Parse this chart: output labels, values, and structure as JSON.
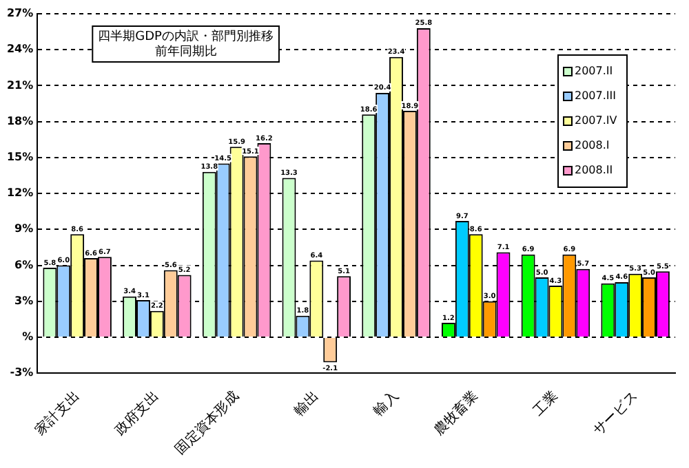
{
  "chart_data": {
    "type": "bar",
    "title": "四半期GDPの内訳・部門別推移",
    "subtitle": "前年同期比",
    "categories": [
      "家計支出",
      "政府支出",
      "固定資本形成",
      "輸出",
      "輸入",
      "農牧畜業",
      "工業",
      "サービス"
    ],
    "series": [
      {
        "name": "2007.II",
        "color": "#ccffcc",
        "colors": [
          "#ccffcc",
          "#ccffcc",
          "#ccffcc",
          "#ccffcc",
          "#ccffcc",
          "#00ff00",
          "#00ff00",
          "#00ff00"
        ],
        "values": [
          5.8,
          3.4,
          13.8,
          13.3,
          18.6,
          1.2,
          6.9,
          4.5
        ],
        "value_labels": [
          "5.8",
          "3.4",
          "13.8",
          "13.3",
          "18.6",
          "1.2",
          "6.9",
          "4.5"
        ]
      },
      {
        "name": "2007.III",
        "color": "#99ccff",
        "colors": [
          "#99ccff",
          "#99ccff",
          "#99ccff",
          "#99ccff",
          "#99ccff",
          "#00ccff",
          "#00ccff",
          "#00ccff"
        ],
        "values": [
          6.0,
          3.1,
          14.5,
          1.8,
          20.4,
          9.7,
          5.0,
          4.6
        ],
        "value_labels": [
          "6.0",
          "3.1",
          "14.5",
          "1.8",
          "20.4",
          "9.7",
          "5.0",
          "4.6"
        ]
      },
      {
        "name": "2007.IV",
        "color": "#ffff99",
        "colors": [
          "#ffff99",
          "#ffff99",
          "#ffff99",
          "#ffff99",
          "#ffff99",
          "#ffff00",
          "#ffff00",
          "#ffff00"
        ],
        "values": [
          8.6,
          2.2,
          15.9,
          6.4,
          23.4,
          8.6,
          4.3,
          5.3
        ],
        "value_labels": [
          "8.6",
          "2.2",
          "15.9",
          "6.4",
          "23.4",
          "8.6",
          "4.3",
          "5.3"
        ]
      },
      {
        "name": "2008.I",
        "color": "#ffcc99",
        "colors": [
          "#ffcc99",
          "#ffcc99",
          "#ffcc99",
          "#ffcc99",
          "#ffcc99",
          "#ff9900",
          "#ff9900",
          "#ff9900"
        ],
        "values": [
          6.6,
          5.6,
          15.1,
          -2.1,
          18.9,
          3.0,
          6.9,
          5.0
        ],
        "value_labels": [
          "6.6",
          "5.6",
          "15.1",
          "-2.1",
          "18.9",
          "3.0",
          "6.9",
          "5.0"
        ]
      },
      {
        "name": "2008.II",
        "color": "#ff99cc",
        "colors": [
          "#ff99cc",
          "#ff99cc",
          "#ff99cc",
          "#ff99cc",
          "#ff99cc",
          "#ff00ff",
          "#ff00ff",
          "#ff00ff"
        ],
        "values": [
          6.7,
          5.2,
          16.2,
          5.1,
          25.8,
          7.1,
          5.7,
          5.5
        ],
        "value_labels": [
          "6.7",
          "5.2",
          "16.2",
          "5.1",
          "25.8",
          "7.1",
          "5.7",
          "5.5"
        ]
      }
    ],
    "ylim": [
      -3,
      27
    ],
    "yticks": [
      {
        "value": -3,
        "label": "-3%"
      },
      {
        "value": 0,
        "label": "%"
      },
      {
        "value": 3,
        "label": "3%"
      },
      {
        "value": 6,
        "label": "6%"
      },
      {
        "value": 9,
        "label": "9%"
      },
      {
        "value": 12,
        "label": "12%"
      },
      {
        "value": 15,
        "label": "15%"
      },
      {
        "value": 18,
        "label": "18%"
      },
      {
        "value": 21,
        "label": "21%"
      },
      {
        "value": 24,
        "label": "24%"
      },
      {
        "value": 27,
        "label": "27%"
      }
    ],
    "grid": "y",
    "line_style": "dashed",
    "legend": "top right"
  }
}
